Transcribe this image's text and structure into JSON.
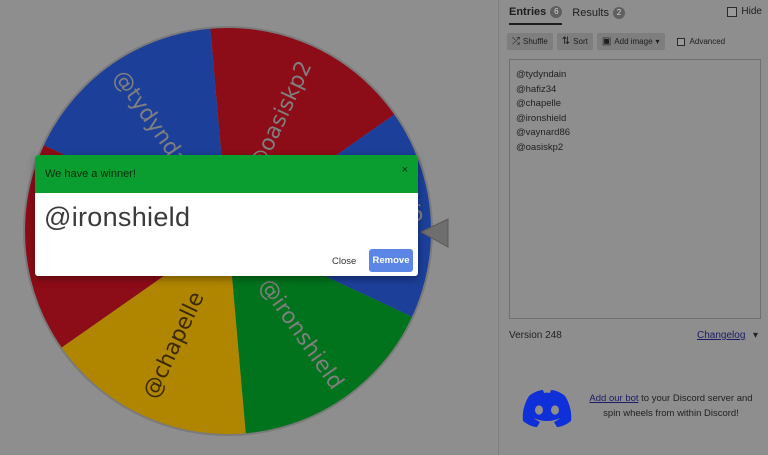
{
  "tabs": {
    "entries_label": "Entries",
    "entries_count": "6",
    "results_label": "Results",
    "results_count": "2",
    "hide_label": "Hide"
  },
  "toolbar": {
    "shuffle_label": "Shuffle",
    "sort_label": "Sort",
    "add_image_label": "Add image",
    "advanced_label": "Advanced"
  },
  "entries": [
    "@tydyndain",
    "@hafiz34",
    "@chapelle",
    "@ironshield",
    "@vaynard86",
    "@oasiskp2"
  ],
  "wheel": {
    "slices": [
      {
        "label": "@oasiskp2",
        "color": "#8c0c17"
      },
      {
        "label": "@vaynard86",
        "color": "#1c3f99"
      },
      {
        "label": "@ironshield",
        "color": "#00731c"
      },
      {
        "label": "@chapelle",
        "color": "#b08500"
      },
      {
        "label": "@hafiz34",
        "color": "#8c0c17"
      },
      {
        "label": "@tydyndain",
        "color": "#1c3f99"
      }
    ]
  },
  "dialog": {
    "title": "We have a winner!",
    "close_x": "×",
    "winner": "@ironshield",
    "close_label": "Close",
    "remove_label": "Remove"
  },
  "footer": {
    "version": "Version 248",
    "changelog": "Changelog",
    "discord_link": "Add our bot",
    "discord_text": " to your Discord server and spin wheels from within Discord!"
  },
  "colors": {
    "dialog_header": "#0a9d2f",
    "remove_button": "#5b86e5",
    "overlay": "#8e8e8e"
  }
}
